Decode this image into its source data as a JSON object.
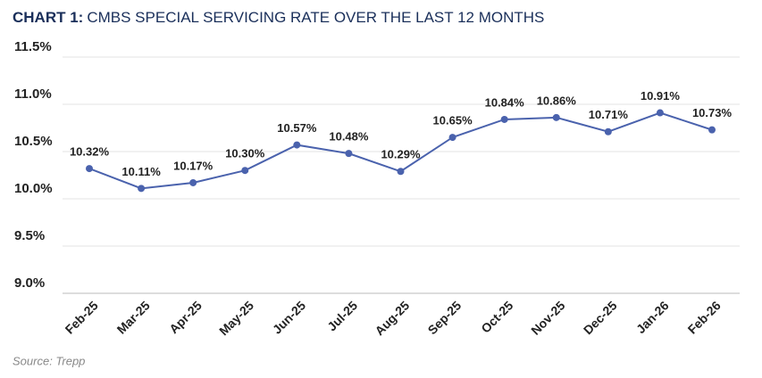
{
  "chart_data": {
    "type": "line",
    "title_label": "CHART 1:",
    "title": "CMBS SPECIAL SERVICING RATE OVER THE LAST 12 MONTHS",
    "source": "Source: Trepp",
    "categories": [
      "Feb-25",
      "Mar-25",
      "Apr-25",
      "May-25",
      "Jun-25",
      "Jul-25",
      "Aug-25",
      "Sep-25",
      "Oct-25",
      "Nov-25",
      "Dec-25",
      "Jan-26",
      "Feb-26"
    ],
    "series": [
      {
        "color": "#4a62ad",
        "values": [
          10.32,
          10.11,
          10.17,
          10.3,
          10.57,
          10.48,
          10.29,
          10.65,
          10.84,
          10.86,
          10.71,
          10.91,
          10.73
        ],
        "value_labels": [
          "10.32%",
          "10.11%",
          "10.17%",
          "10.30%",
          "10.57%",
          "10.48%",
          "10.29%",
          "10.65%",
          "10.84%",
          "10.86%",
          "10.71%",
          "10.91%",
          "10.73%"
        ]
      }
    ],
    "ylim": [
      9.0,
      11.5
    ],
    "yticks": [
      {
        "value": 9.0,
        "label": "9.0%"
      },
      {
        "value": 9.5,
        "label": "9.5%"
      },
      {
        "value": 10.0,
        "label": "10.0%"
      },
      {
        "value": 10.5,
        "label": "10.5%"
      },
      {
        "value": 11.0,
        "label": "11.0%"
      },
      {
        "value": 11.5,
        "label": "11.5%"
      }
    ],
    "grid": true
  }
}
